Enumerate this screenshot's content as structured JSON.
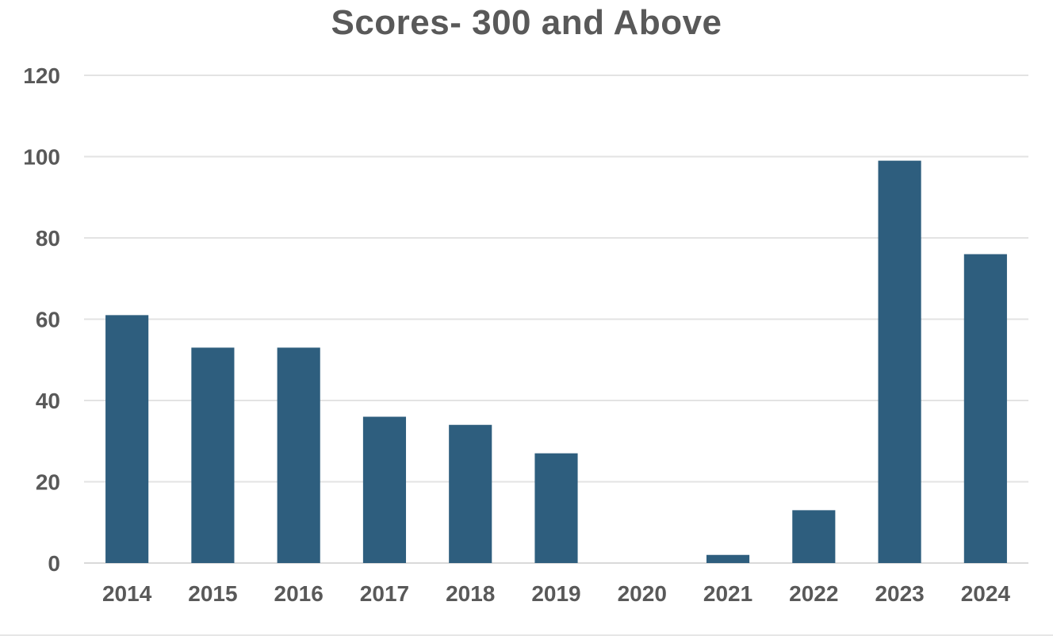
{
  "chart_data": {
    "type": "bar",
    "title": "Scores- 300 and Above",
    "xlabel": "",
    "ylabel": "",
    "categories": [
      "2014",
      "2015",
      "2016",
      "2017",
      "2018",
      "2019",
      "2020",
      "2021",
      "2022",
      "2023",
      "2024"
    ],
    "values": [
      61,
      53,
      53,
      36,
      34,
      27,
      0,
      2,
      13,
      99,
      76
    ],
    "ylim": [
      0,
      120
    ],
    "yticks": [
      0,
      20,
      40,
      60,
      80,
      100,
      120
    ],
    "grid": true,
    "legend": "none",
    "bar_color": "#2e5e7e"
  }
}
